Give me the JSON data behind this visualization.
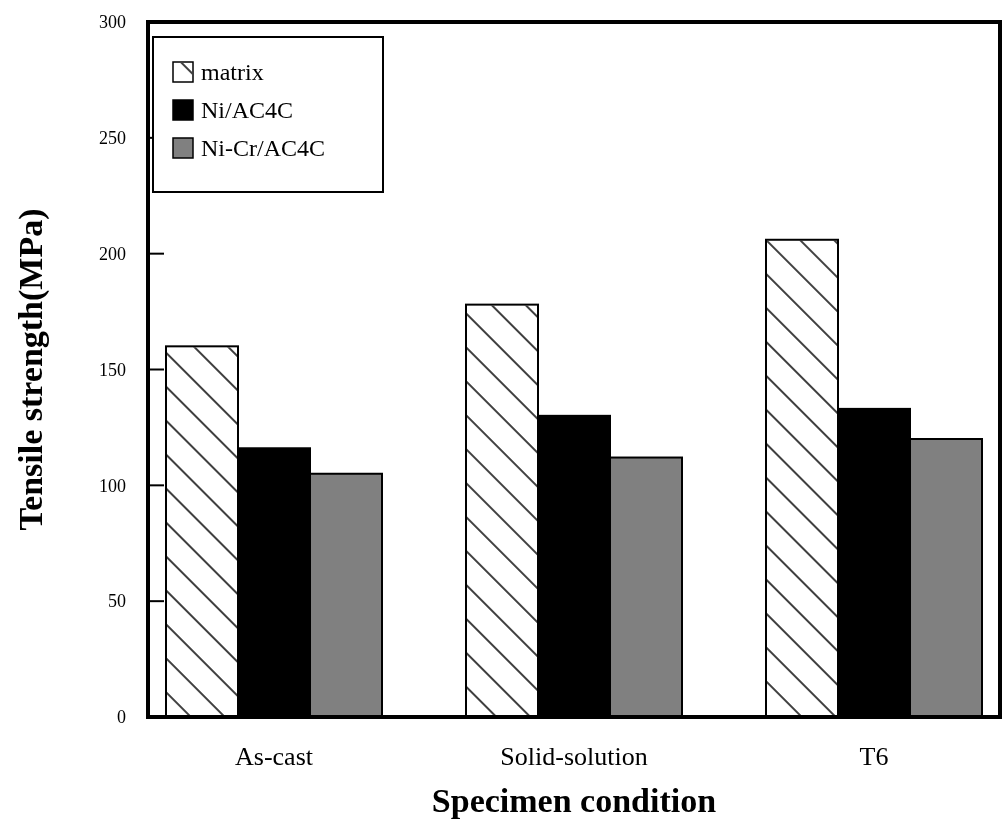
{
  "chart_data": {
    "type": "bar",
    "xlabel": "Specimen condition",
    "ylabel": "Tensile strength(MPa)",
    "categories": [
      "As-cast",
      "Solid-solution",
      "T6"
    ],
    "series": [
      {
        "name": "matrix",
        "color": "#ffffff",
        "values": [
          160,
          178,
          206
        ]
      },
      {
        "name": "Ni/AC4C",
        "color": "#000000",
        "values": [
          116,
          130,
          133
        ]
      },
      {
        "name": "Ni-Cr/AC4C",
        "color": "#808080",
        "values": [
          105,
          112,
          120
        ]
      }
    ],
    "ylim": [
      0,
      300
    ],
    "yticks": [
      0,
      50,
      100,
      150,
      200,
      250,
      300
    ],
    "grid": false,
    "legend": "top left"
  }
}
